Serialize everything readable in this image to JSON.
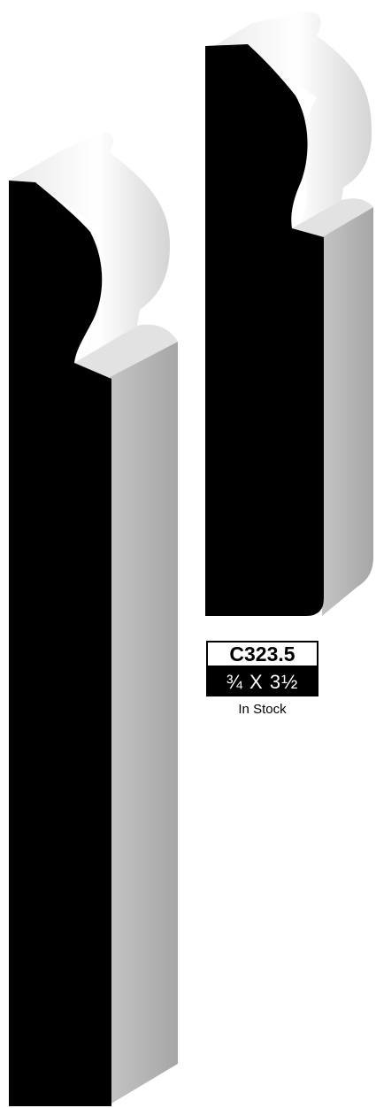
{
  "product": {
    "code": "C323.5",
    "dimensions": "¾ X 3½",
    "availability": "In Stock"
  },
  "colors": {
    "profile_face": "#000000",
    "top_highlight": "#f4f4f4",
    "side_shade": "#b4b4b4"
  },
  "icons": [
    "baseboard-molding-profile-icon"
  ]
}
